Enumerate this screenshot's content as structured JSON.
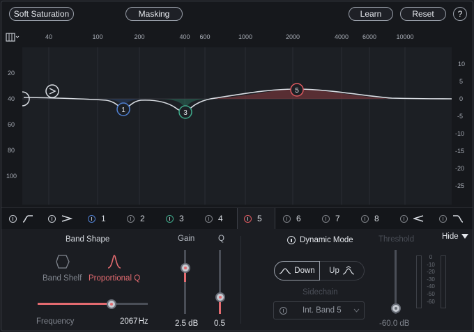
{
  "header": {
    "preset_label": "Soft Saturation",
    "masking_label": "Masking",
    "learn_label": "Learn",
    "reset_label": "Reset",
    "help_label": "?"
  },
  "graph": {
    "freq_ticks": [
      "40",
      "100",
      "200",
      "400",
      "600",
      "1000",
      "2000",
      "4000",
      "6000",
      "10000"
    ],
    "left_scale": [
      "20",
      "40",
      "60",
      "80",
      "100"
    ],
    "right_scale": [
      "10",
      "5",
      "0",
      "-5",
      "-10",
      "-15",
      "-20",
      "-25"
    ],
    "nodes": [
      "1",
      "3",
      "5"
    ],
    "colors": {
      "band1": "#4f7fd1",
      "band3": "#3fa98a",
      "band5": "#e05a60",
      "curve": "#d9dde3"
    }
  },
  "bands": [
    {
      "label": "",
      "icon": "low-shelf-icon"
    },
    {
      "label": "",
      "icon": "high-pass-icon"
    },
    {
      "label": "1",
      "color": "#4f7fd1"
    },
    {
      "label": "2"
    },
    {
      "label": "3",
      "color": "#3fa98a"
    },
    {
      "label": "4"
    },
    {
      "label": "5",
      "color": "#e05a60",
      "selected": true
    },
    {
      "label": "6"
    },
    {
      "label": "7"
    },
    {
      "label": "8"
    },
    {
      "label": "",
      "icon": "low-pass-icon"
    },
    {
      "label": "",
      "icon": "high-shelf-icon"
    }
  ],
  "panel": {
    "band_shape_title": "Band Shape",
    "band_shelf_label": "Band Shelf",
    "proportional_q_label": "Proportional Q",
    "frequency_label": "Frequency",
    "frequency_value": "2067",
    "frequency_unit": "Hz",
    "gain_label": "Gain",
    "gain_value": "2.5 dB",
    "q_label": "Q",
    "q_value": "0.5",
    "dynamic_mode_label": "Dynamic Mode",
    "threshold_label": "Threshold",
    "threshold_value": "-60.0 dB",
    "down_label": "Down",
    "up_label": "Up",
    "sidechain_label": "Sidechain",
    "sidechain_value": "Int. Band 5",
    "hide_label": "Hide",
    "meter_scale": [
      "0",
      "-10",
      "-20",
      "-30",
      "-40",
      "-50",
      "-60"
    ],
    "accent_color": "#e46b70"
  }
}
